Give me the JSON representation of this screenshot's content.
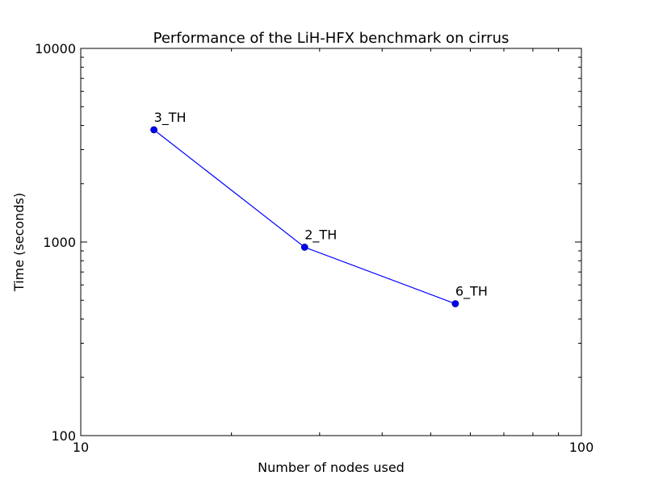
{
  "chart_data": {
    "type": "line",
    "title": "Performance of the LiH-HFX benchmark on cirrus",
    "xlabel": "Number of nodes used",
    "ylabel": "Time (seconds)",
    "x_scale": "log",
    "y_scale": "log",
    "xlim": [
      10,
      100
    ],
    "ylim": [
      100,
      10000
    ],
    "x_ticks": [
      "10",
      "100"
    ],
    "y_ticks": [
      "100",
      "1000",
      "10000"
    ],
    "grid": false,
    "legend": "none",
    "series": [
      {
        "color": "#0000ff",
        "marker": "circle",
        "points": [
          {
            "x": 14,
            "y": 3800,
            "label": "3_TH"
          },
          {
            "x": 28,
            "y": 940,
            "label": "2_TH"
          },
          {
            "x": 56,
            "y": 480,
            "label": "6_TH"
          }
        ]
      }
    ]
  }
}
